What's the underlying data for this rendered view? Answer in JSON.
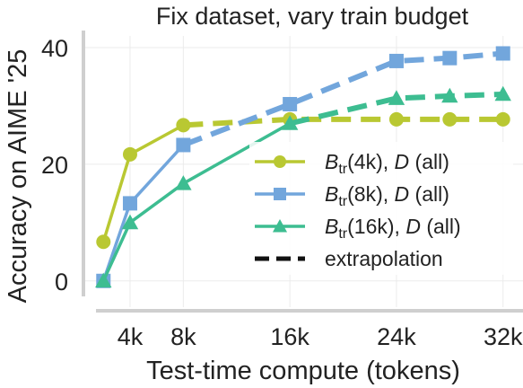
{
  "chart_data": {
    "type": "line",
    "title": "Fix dataset, vary train budget",
    "xlabel": "Test-time compute (tokens)",
    "ylabel": "Accuracy on AIME '25",
    "x_ticks": [
      {
        "value": 4,
        "label": "4k"
      },
      {
        "value": 8,
        "label": "8k"
      },
      {
        "value": 16,
        "label": "16k"
      },
      {
        "value": 24,
        "label": "24k"
      },
      {
        "value": 32,
        "label": "32k"
      }
    ],
    "y_ticks": [
      {
        "value": 0,
        "label": "0"
      },
      {
        "value": 20,
        "label": "20"
      },
      {
        "value": 40,
        "label": "40"
      }
    ],
    "xlim": [
      0.5,
      33.5
    ],
    "ylim": [
      -4.5,
      42
    ],
    "grid": true,
    "legend_position": "right",
    "series": [
      {
        "base": "B",
        "sub": "tr",
        "budget": "(4k), ",
        "dvar": "D",
        "tail": " (all)",
        "color": "#b9c832",
        "marker": "circle",
        "x": [
          2,
          4,
          8,
          16,
          24,
          28,
          32
        ],
        "y": [
          6.7,
          21.7,
          26.7,
          27.7,
          27.7,
          27.7,
          27.7
        ],
        "solid_until_index": 2
      },
      {
        "base": "B",
        "sub": "tr",
        "budget": "(8k), ",
        "dvar": "D",
        "tail": " (all)",
        "color": "#72a6dc",
        "marker": "square",
        "x": [
          2,
          4,
          8,
          16,
          24,
          28,
          32
        ],
        "y": [
          0,
          13.3,
          23.3,
          30.3,
          37.7,
          38.2,
          39.0
        ],
        "solid_until_index": 2
      },
      {
        "base": "B",
        "sub": "tr",
        "budget": "(16k), ",
        "dvar": "D",
        "tail": " (all)",
        "color": "#3dbd91",
        "marker": "triangle",
        "x": [
          2,
          4,
          8,
          16,
          24,
          28,
          32
        ],
        "y": [
          0,
          10,
          16.7,
          27.0,
          31.3,
          31.7,
          32.0
        ],
        "solid_until_index": 3
      }
    ],
    "extrapolation_label": "extrapolation"
  }
}
